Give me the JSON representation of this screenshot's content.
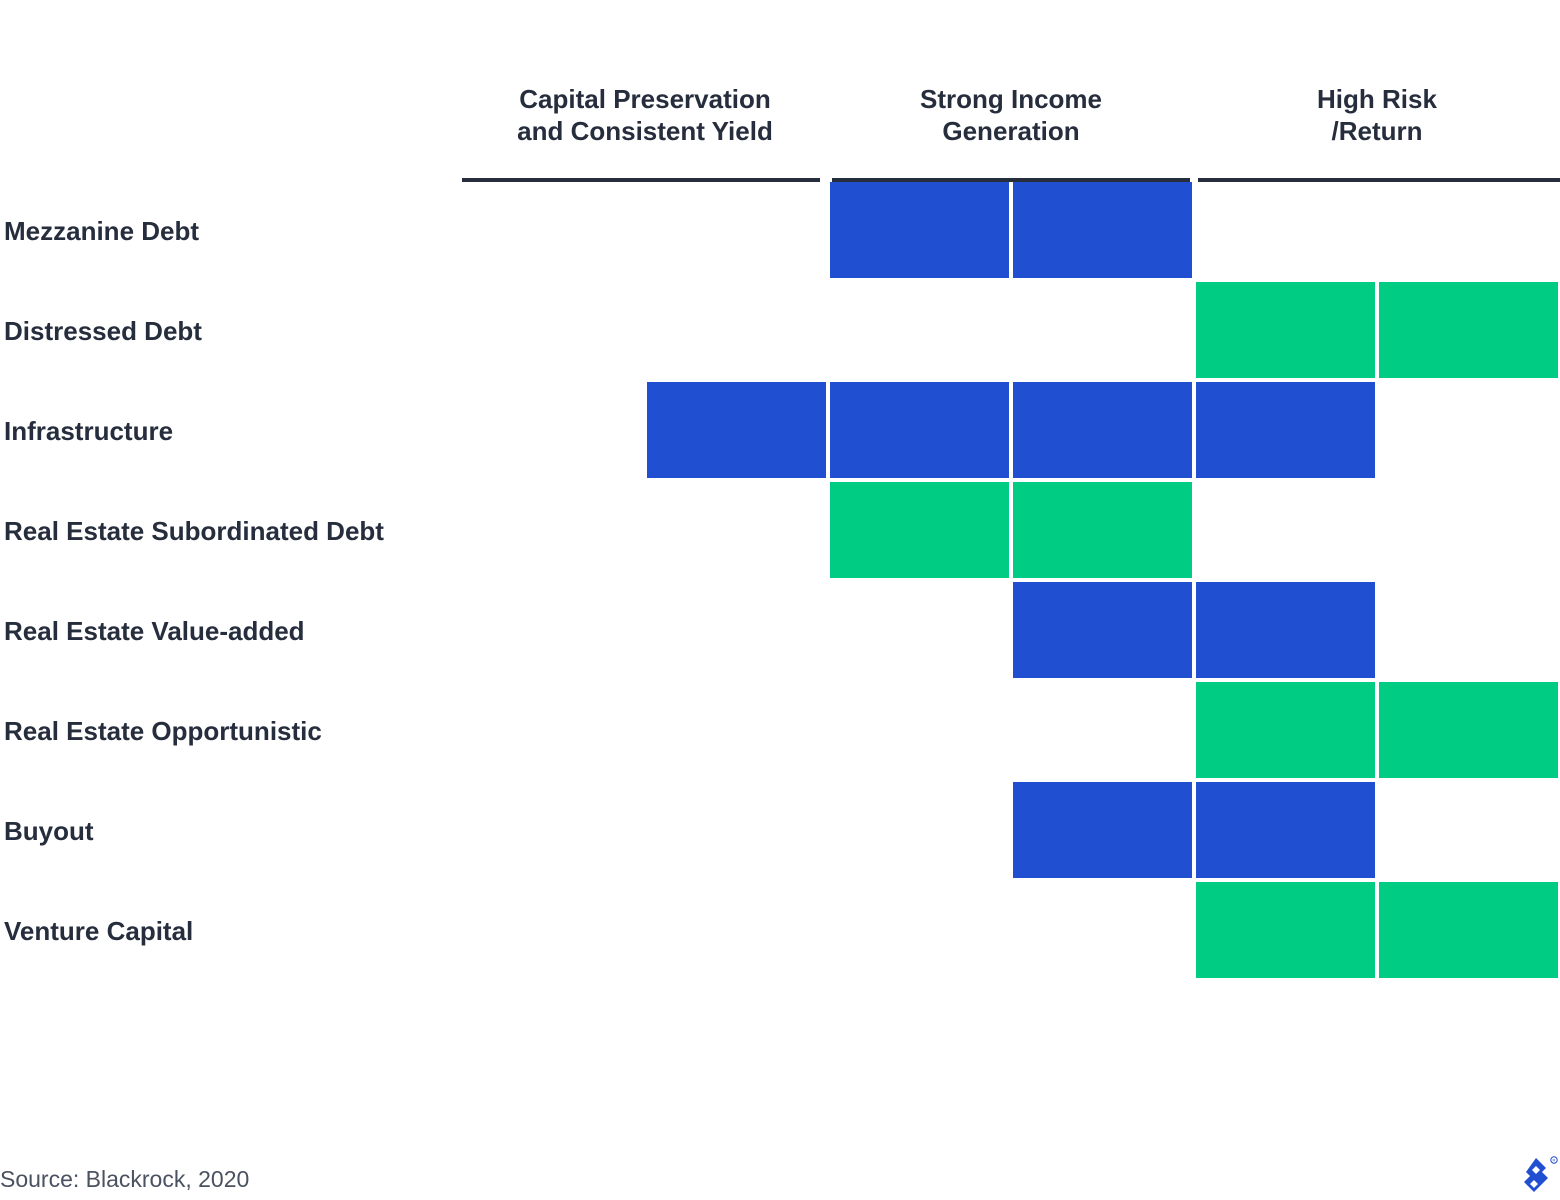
{
  "chart_data": {
    "type": "heatmap",
    "columns": [
      {
        "lines": [
          "Capital Preservation",
          "and Consistent Yield"
        ]
      },
      {
        "lines": [
          "Strong Income",
          "Generation"
        ]
      },
      {
        "lines": [
          "High Risk",
          "/Return"
        ]
      }
    ],
    "segments_per_column": 2,
    "rows": [
      {
        "label": "Mezzanine Debt",
        "start": 3,
        "end": 4,
        "color": "blue"
      },
      {
        "label": "Distressed Debt",
        "start": 5,
        "end": 6,
        "color": "green"
      },
      {
        "label": "Infrastructure",
        "start": 2,
        "end": 5,
        "color": "blue"
      },
      {
        "label": "Real Estate Subordinated Debt",
        "start": 3,
        "end": 4,
        "color": "green"
      },
      {
        "label": "Real Estate Value-added",
        "start": 4,
        "end": 5,
        "color": "blue"
      },
      {
        "label": "Real Estate Opportunistic",
        "start": 5,
        "end": 6,
        "color": "green"
      },
      {
        "label": "Buyout",
        "start": 4,
        "end": 5,
        "color": "blue"
      },
      {
        "label": "Venture Capital",
        "start": 5,
        "end": 6,
        "color": "green"
      }
    ],
    "colors": {
      "blue": "#214fd1",
      "green": "#00cc83",
      "text": "#262d3d",
      "rule": "#262d3d"
    }
  },
  "footer": {
    "source": "Source: Blackrock, 2020"
  },
  "logo": {
    "icon": "toptal-logo-icon"
  }
}
